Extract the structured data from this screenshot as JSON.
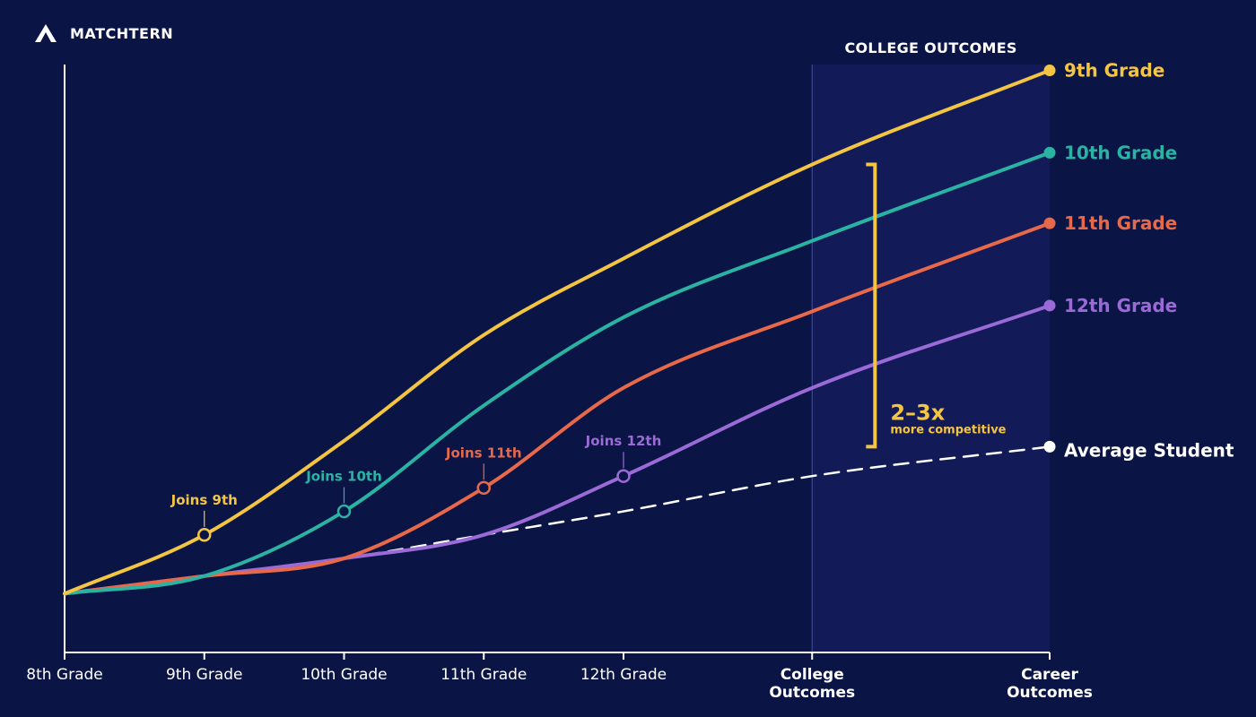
{
  "brand": {
    "name": "MATCHTERN",
    "icon": "matchtern-logo-icon"
  },
  "colors": {
    "background": "#0b1545",
    "region": "#121b58",
    "region_border": "#3a4fc0",
    "axis": "#ffffff",
    "grade_9": "#f4c542",
    "grade_10": "#2ab3a3",
    "grade_11": "#e8684a",
    "grade_12": "#9a6ad6",
    "average": "#ffffff"
  },
  "chart_data": {
    "type": "line",
    "title": "",
    "xlabel": "",
    "ylabel": "",
    "categories": [
      "8th Grade",
      "9th Grade",
      "10th Grade",
      "11th Grade",
      "12th Grade",
      "College Outcomes",
      "Career Outcomes"
    ],
    "category_positions": [
      0,
      1,
      2,
      3,
      4,
      5.35,
      7.05
    ],
    "emphasized_categories": [
      "College Outcomes",
      "Career Outcomes"
    ],
    "x_range": [
      0,
      7.05
    ],
    "y_range": [
      0,
      100
    ],
    "grid": false,
    "legend": "labels at line ends (right)",
    "highlight_region": {
      "label": "COLLEGE OUTCOMES",
      "from": 5.35,
      "to": 7.05
    },
    "series": [
      {
        "name": "9th Grade",
        "color_key": "grade_9",
        "join_label": "Joins 9th",
        "join_at": 1,
        "dashed": false,
        "x": [
          0,
          1,
          2,
          3,
          4,
          5.35,
          7.05
        ],
        "y": [
          10,
          20,
          36,
          54,
          67,
          83,
          99
        ]
      },
      {
        "name": "10th Grade",
        "color_key": "grade_10",
        "join_label": "Joins 10th",
        "join_at": 2,
        "dashed": false,
        "x": [
          0,
          1,
          2,
          3,
          4,
          5.35,
          7.05
        ],
        "y": [
          10,
          13,
          24,
          42,
          57,
          70,
          85
        ]
      },
      {
        "name": "11th Grade",
        "color_key": "grade_11",
        "join_label": "Joins 11th",
        "join_at": 3,
        "dashed": false,
        "x": [
          0,
          1,
          2,
          3,
          4,
          5.35,
          7.05
        ],
        "y": [
          10,
          13,
          16,
          28,
          45,
          58,
          73
        ]
      },
      {
        "name": "12th Grade",
        "color_key": "grade_12",
        "join_label": "Joins 12th",
        "join_at": 4,
        "dashed": false,
        "x": [
          0,
          1,
          2,
          3,
          4,
          5.35,
          7.05
        ],
        "y": [
          10,
          13,
          16,
          20,
          30,
          45,
          59
        ]
      },
      {
        "name": "Average Student",
        "color_key": "average",
        "join_label": "",
        "join_at": null,
        "dashed": true,
        "x": [
          0,
          1,
          2,
          3,
          4,
          5.35,
          7.05
        ],
        "y": [
          10,
          13,
          16,
          20,
          24,
          30,
          35
        ]
      }
    ],
    "annotation": {
      "headline": "2–3x",
      "subtext": "more competitive",
      "color_key": "grade_9",
      "from_value": 83,
      "to_value": 35,
      "at_x": 5.8
    }
  }
}
